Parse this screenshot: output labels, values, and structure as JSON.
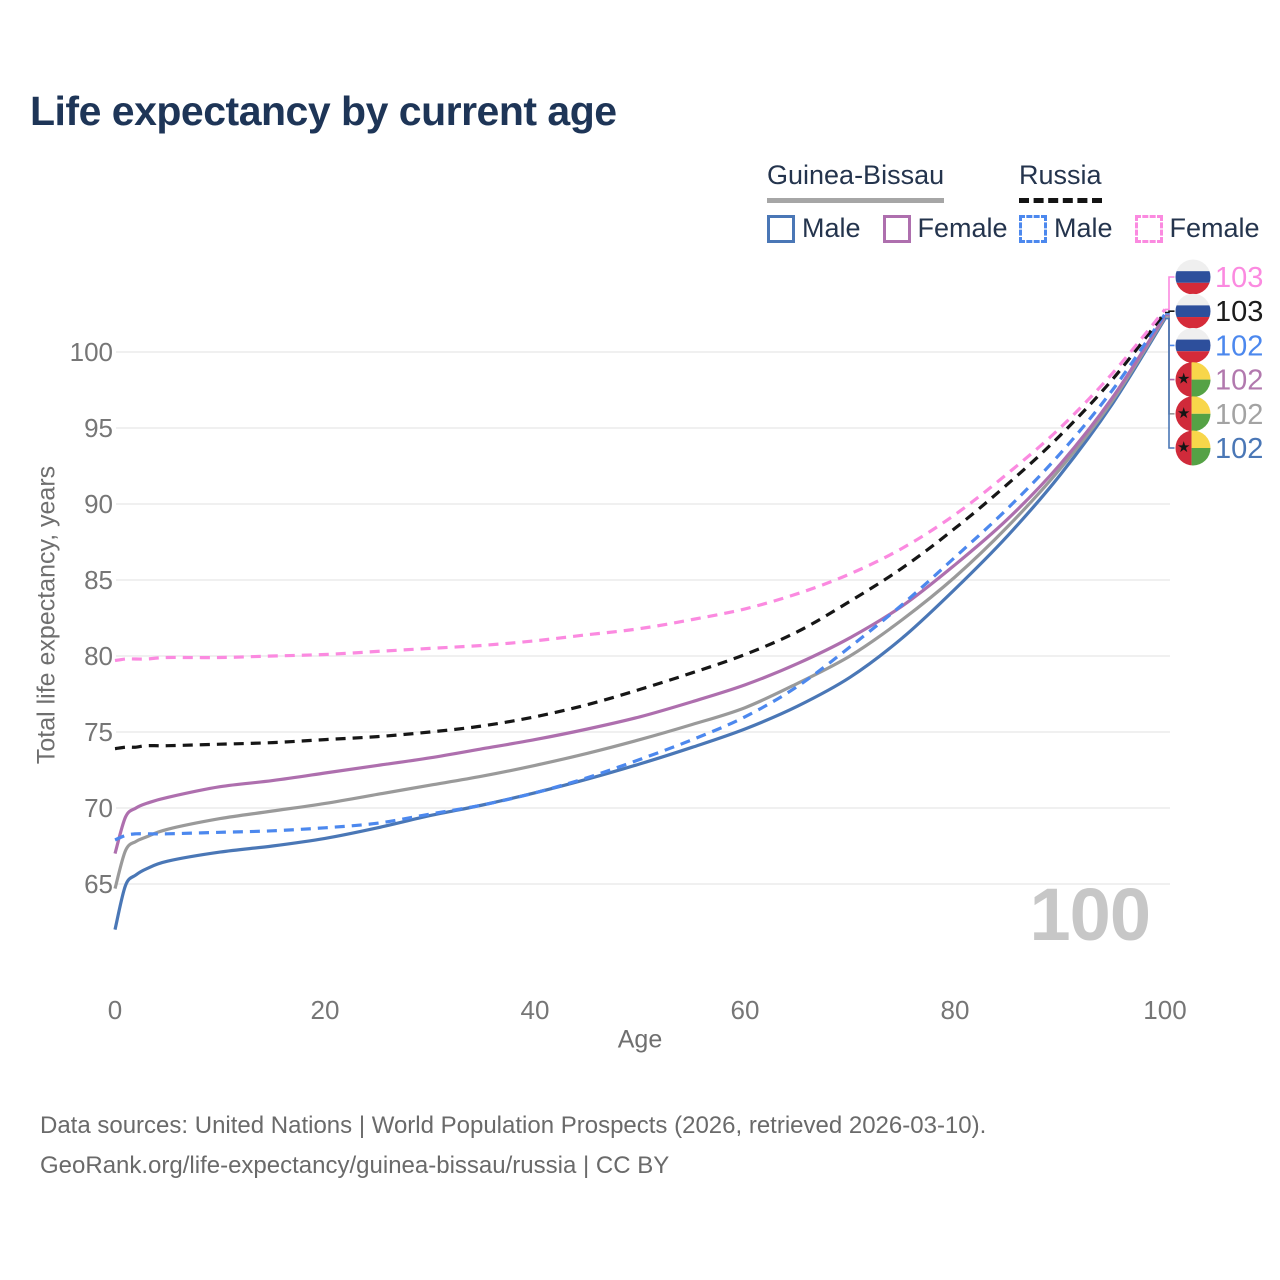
{
  "page": {
    "title": "Life expectancy by current age",
    "watermark": "100",
    "footer_line1": "Data sources: United Nations | World Population Prospects (2026, retrieved 2026-03-10).",
    "footer_line2": "GeoRank.org/life-expectancy/guinea-bissau/russia | CC BY"
  },
  "legend": {
    "groups": [
      {
        "name": "Guinea-Bissau",
        "line_style": "solid",
        "underline_color": "#a6a6a6",
        "items": [
          {
            "label": "Male",
            "color": "#4a77b6",
            "dashed": false
          },
          {
            "label": "Female",
            "color": "#ae6fae",
            "dashed": false
          }
        ]
      },
      {
        "name": "Russia",
        "line_style": "dashed",
        "underline_color": "#141414",
        "items": [
          {
            "label": "Male",
            "color": "#4c88ee",
            "dashed": true
          },
          {
            "label": "Female",
            "color": "#fb8ae0",
            "dashed": true
          }
        ]
      }
    ]
  },
  "chart_data": {
    "type": "line",
    "title": "Life expectancy by current age",
    "xlabel": "Age",
    "ylabel": "Total life expectancy, years",
    "x_ticks": [
      0,
      20,
      40,
      60,
      80,
      100
    ],
    "y_ticks": [
      65,
      70,
      75,
      80,
      85,
      90,
      95,
      100
    ],
    "xlim": [
      0,
      100
    ],
    "ylim": [
      61.5,
      103.5
    ],
    "grid": "horizontal-only",
    "legend_position": "top-right",
    "x": [
      0,
      1,
      2,
      3,
      5,
      10,
      15,
      20,
      25,
      30,
      35,
      40,
      45,
      50,
      55,
      60,
      65,
      70,
      75,
      80,
      85,
      90,
      95,
      100
    ],
    "series": [
      {
        "name": "Guinea-Bissau Male",
        "country": "Guinea-Bissau",
        "sex": "Male",
        "color": "#4a77b6",
        "dashed": false,
        "flag": "gw",
        "end_label": "102",
        "end_label_color": "#4a77b6",
        "values": [
          62.0,
          64.9,
          65.6,
          66.0,
          66.5,
          67.1,
          67.5,
          68.0,
          68.7,
          69.5,
          70.2,
          71.0,
          71.9,
          72.9,
          74.0,
          75.2,
          76.7,
          78.6,
          81.2,
          84.4,
          87.9,
          91.9,
          96.6,
          102.2
        ]
      },
      {
        "name": "Guinea-Bissau Both sexes",
        "country": "Guinea-Bissau",
        "sex": "Both",
        "color": "#9a9a9a",
        "dashed": false,
        "flag": "gw",
        "end_label": "102",
        "end_label_color": "#a3a3a3",
        "values": [
          64.7,
          67.2,
          67.8,
          68.1,
          68.6,
          69.3,
          69.8,
          70.3,
          70.9,
          71.5,
          72.1,
          72.8,
          73.6,
          74.5,
          75.5,
          76.6,
          78.2,
          80.0,
          82.4,
          85.2,
          88.5,
          92.3,
          96.8,
          102.3
        ]
      },
      {
        "name": "Guinea-Bissau Female",
        "country": "Guinea-Bissau",
        "sex": "Female",
        "color": "#ae6fae",
        "dashed": false,
        "flag": "gw",
        "end_label": "102",
        "end_label_color": "#b279ae",
        "values": [
          67.0,
          69.4,
          70.0,
          70.3,
          70.7,
          71.4,
          71.8,
          72.3,
          72.8,
          73.3,
          73.9,
          74.5,
          75.2,
          76.0,
          77.0,
          78.1,
          79.5,
          81.2,
          83.3,
          86.0,
          89.0,
          92.6,
          97.0,
          102.4
        ]
      },
      {
        "name": "Russia Male",
        "country": "Russia",
        "sex": "Male",
        "color": "#4c88ee",
        "dashed": true,
        "flag": "ru",
        "end_label": "102",
        "end_label_color": "#4c88ee",
        "values": [
          67.9,
          68.2,
          68.3,
          68.3,
          68.3,
          68.4,
          68.5,
          68.7,
          69.0,
          69.6,
          70.2,
          71.0,
          72.0,
          73.2,
          74.5,
          76.0,
          78.0,
          80.6,
          83.4,
          86.5,
          89.7,
          93.3,
          97.5,
          102.5
        ]
      },
      {
        "name": "Russia Both sexes",
        "country": "Russia",
        "sex": "Both",
        "color": "#161616",
        "dashed": true,
        "flag": "ru",
        "end_label": "103",
        "end_label_color": "#1b1b1b",
        "values": [
          73.9,
          74.0,
          74.0,
          74.1,
          74.1,
          74.2,
          74.3,
          74.5,
          74.7,
          75.0,
          75.4,
          76.0,
          76.8,
          77.8,
          78.9,
          80.1,
          81.6,
          83.6,
          85.8,
          88.4,
          91.3,
          94.5,
          98.2,
          102.6
        ]
      },
      {
        "name": "Russia Female",
        "country": "Russia",
        "sex": "Female",
        "color": "#fb8ae0",
        "dashed": true,
        "flag": "ru",
        "end_label": "103",
        "end_label_color": "#fb8ae0",
        "values": [
          79.7,
          79.8,
          79.8,
          79.8,
          79.9,
          79.9,
          80.0,
          80.1,
          80.3,
          80.5,
          80.7,
          81.0,
          81.4,
          81.8,
          82.4,
          83.1,
          84.1,
          85.4,
          87.1,
          89.3,
          92.0,
          95.0,
          98.6,
          102.8
        ]
      }
    ]
  }
}
